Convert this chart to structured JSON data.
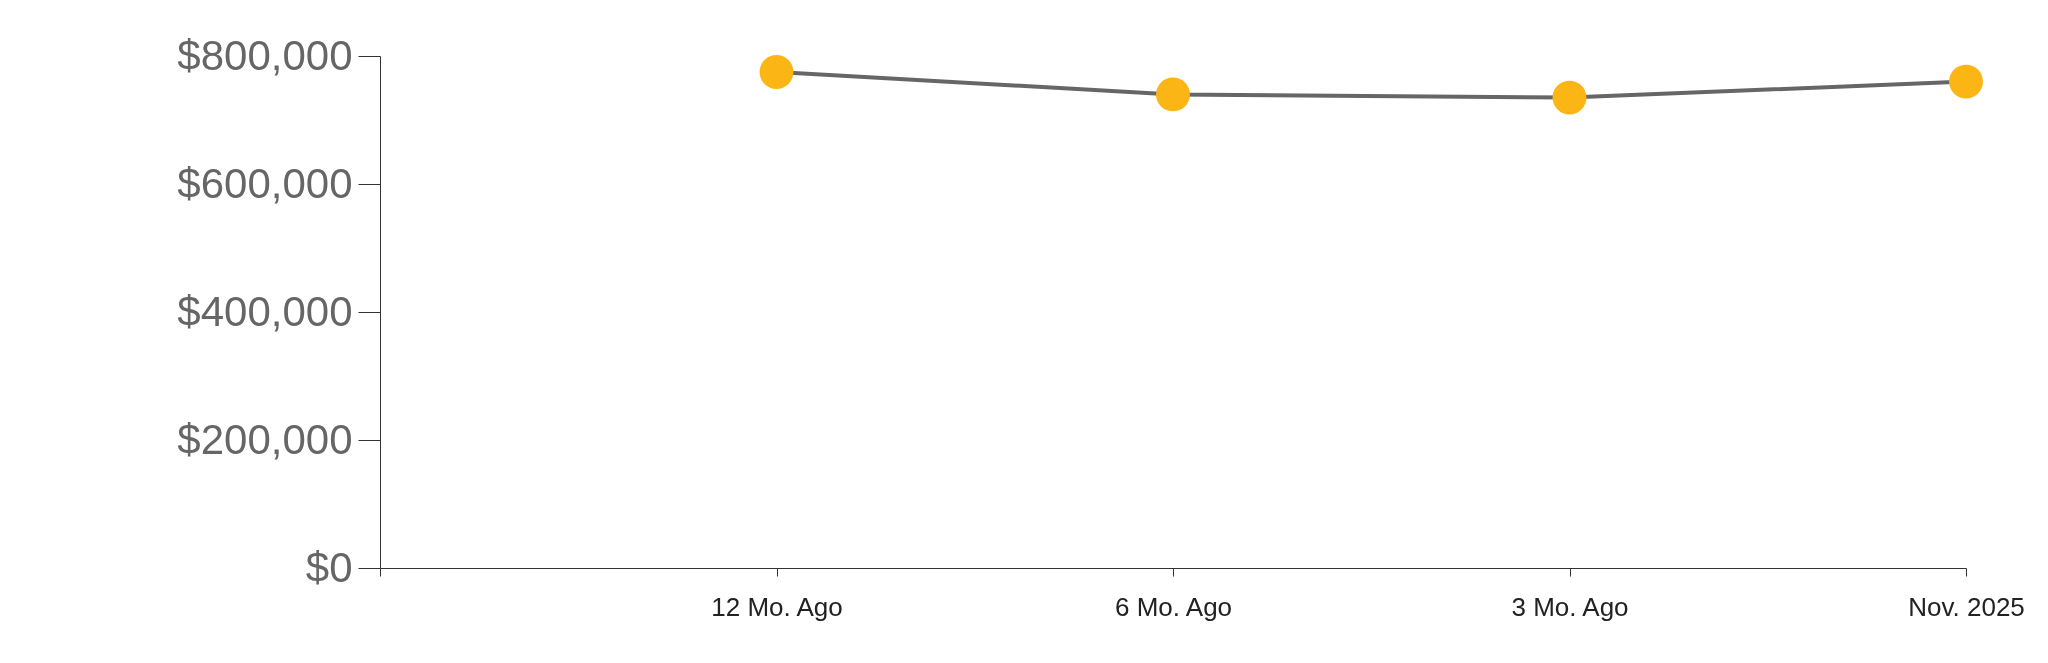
{
  "chart_data": {
    "type": "line",
    "categories": [
      null,
      "12 Mo. Ago",
      "6 Mo. Ago",
      "3 Mo. Ago",
      "Nov. 2025"
    ],
    "series": [
      {
        "color": "#666666",
        "colors": [
          null,
          "#fbb515",
          "#fbb515",
          "#fbb515",
          "#fbb515"
        ],
        "values": [
          null,
          775000,
          740000,
          735000,
          760000
        ]
      }
    ],
    "ylim": [
      0,
      800000
    ],
    "yticks": [
      {
        "value": 0,
        "label": "$0"
      },
      {
        "value": 200000,
        "label": "$200,000"
      },
      {
        "value": 400000,
        "label": "$400,000"
      },
      {
        "value": 600000,
        "label": "$600,000"
      },
      {
        "value": 800000,
        "label": "$800,000"
      }
    ],
    "marker": "circle"
  }
}
